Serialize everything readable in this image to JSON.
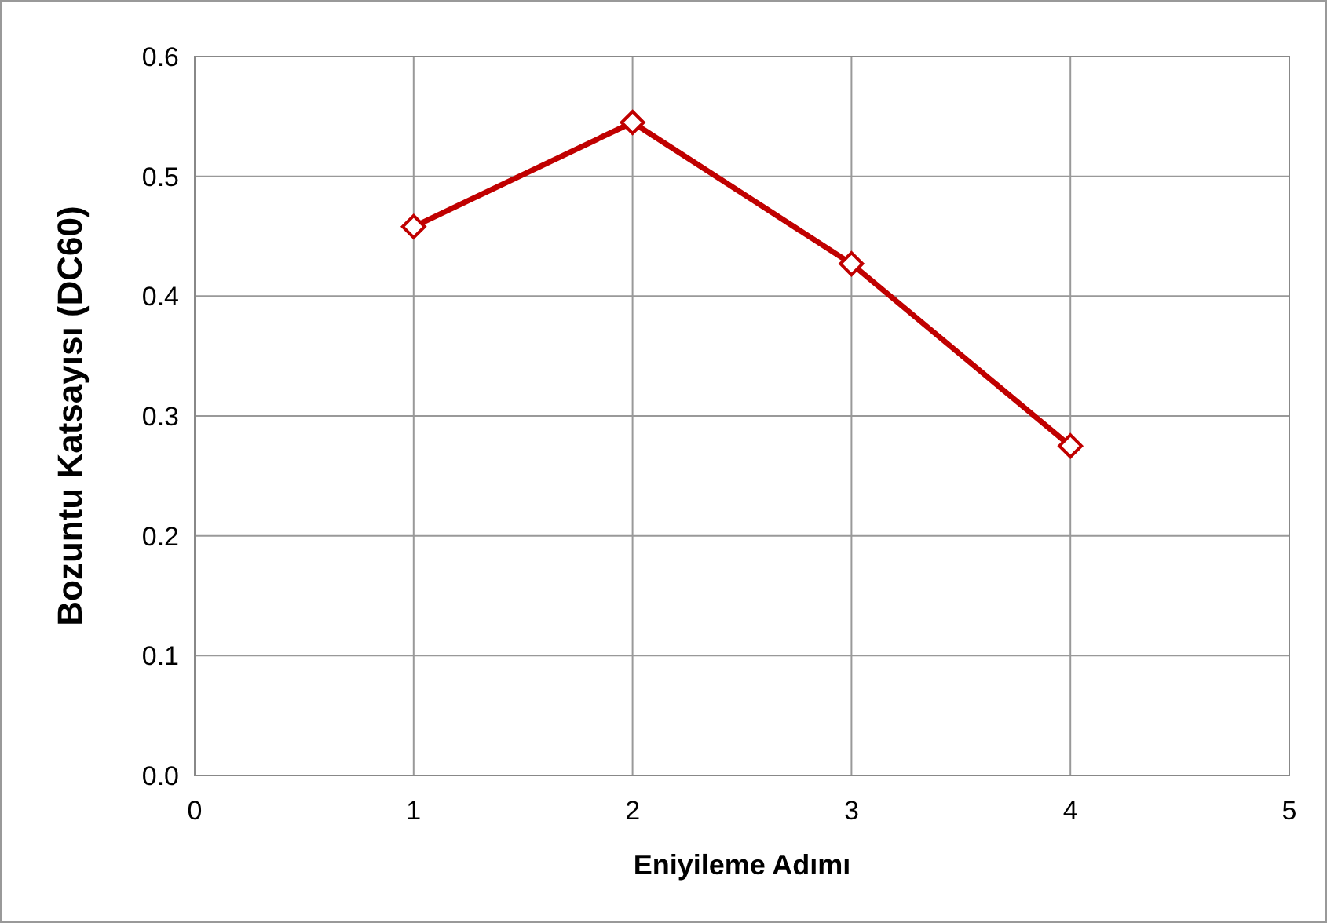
{
  "chart_data": {
    "type": "line",
    "xlabel": "Eniyileme Adımı",
    "ylabel": "Bozuntu Katsayısı (DC60)",
    "x": [
      1,
      2,
      3,
      4
    ],
    "series": [
      {
        "color": "#c00000",
        "values": [
          0.458,
          0.545,
          0.427,
          0.275
        ]
      }
    ],
    "xlim": [
      0,
      5
    ],
    "xticks": [
      0,
      1,
      2,
      3,
      4,
      5
    ],
    "ylim": [
      0,
      0.6
    ],
    "yticks": [
      {
        "value": 0,
        "label": "0.0"
      },
      0.1,
      0.2,
      0.3,
      0.4,
      0.5,
      0.6
    ],
    "grid": true,
    "marker": "diamond",
    "line_style": "solid"
  }
}
